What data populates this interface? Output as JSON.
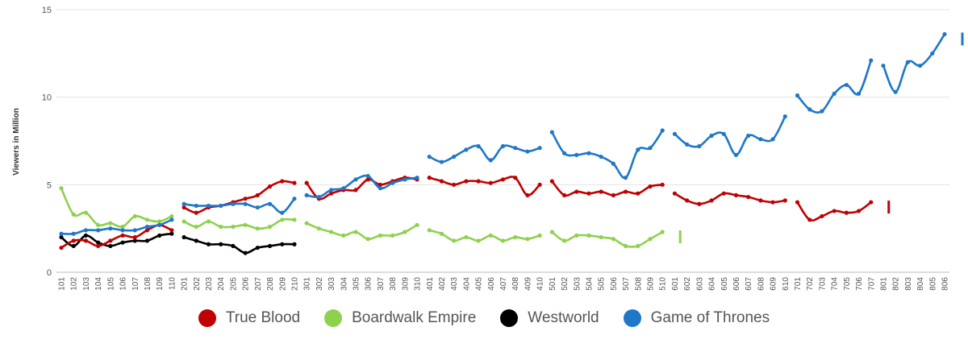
{
  "chart_data": {
    "type": "line",
    "title": "",
    "xlabel": "",
    "ylabel": "Viewers in Million",
    "ylim": [
      0,
      15
    ],
    "yticks": [
      0,
      5,
      10,
      15
    ],
    "grid": true,
    "legend_position": "bottom",
    "seasons": [
      [
        "101",
        "102",
        "103",
        "104",
        "105",
        "106",
        "107",
        "108",
        "109",
        "110"
      ],
      [
        "201",
        "202",
        "203",
        "204",
        "205",
        "206",
        "207",
        "208",
        "209",
        "210"
      ],
      [
        "301",
        "302",
        "303",
        "304",
        "305",
        "306",
        "307",
        "308",
        "309",
        "310"
      ],
      [
        "401",
        "402",
        "403",
        "404",
        "405",
        "406",
        "407",
        "408",
        "409",
        "410"
      ],
      [
        "501",
        "502",
        "503",
        "504",
        "505",
        "506",
        "507",
        "508",
        "509",
        "510"
      ],
      [
        "601",
        "602",
        "603",
        "604",
        "605",
        "606",
        "607",
        "608",
        "609",
        "610"
      ],
      [
        "701",
        "702",
        "703",
        "704",
        "705",
        "706",
        "707"
      ],
      [
        "801",
        "802",
        "803",
        "804",
        "805",
        "806"
      ]
    ],
    "series": [
      {
        "name": "True Blood",
        "color": "#c00000",
        "values": [
          [
            1.4,
            1.8,
            1.8,
            1.5,
            1.8,
            2.1,
            2.0,
            2.4,
            2.7,
            2.4
          ],
          [
            3.7,
            3.4,
            3.7,
            3.8,
            4.0,
            4.2,
            4.4,
            4.9,
            5.2,
            5.1
          ],
          [
            5.1,
            4.2,
            4.5,
            4.7,
            4.7,
            5.3,
            5.0,
            5.2,
            5.4,
            5.3
          ],
          [
            5.4,
            5.2,
            5.0,
            5.2,
            5.2,
            5.1,
            5.3,
            5.4,
            4.4,
            5.0
          ],
          [
            5.2,
            4.4,
            4.6,
            4.5,
            4.6,
            4.4,
            4.6,
            4.5,
            4.9,
            5.0
          ],
          [
            4.5,
            4.1,
            3.9,
            4.1,
            4.5,
            4.4,
            4.3,
            4.1,
            4.0,
            4.1
          ],
          [
            4.0,
            3.0,
            3.2,
            3.5,
            3.4,
            3.5,
            4.0
          ],
          []
        ]
      },
      {
        "name": "Boardwalk Empire",
        "color": "#8fd14f",
        "values": [
          [
            4.8,
            3.3,
            3.4,
            2.7,
            2.8,
            2.6,
            3.2,
            3.0,
            2.9,
            3.2
          ],
          [
            2.9,
            2.6,
            2.9,
            2.6,
            2.6,
            2.7,
            2.5,
            2.6,
            3.0,
            3.0
          ],
          [
            2.8,
            2.5,
            2.3,
            2.1,
            2.3,
            1.9,
            2.1,
            2.1,
            2.3,
            2.7
          ],
          [
            2.4,
            2.2,
            1.8,
            2.0,
            1.8,
            2.1,
            1.8,
            2.0,
            1.9,
            2.1
          ],
          [
            2.3,
            1.8,
            2.1,
            2.1,
            2.0,
            1.9,
            1.5,
            1.5,
            1.9,
            2.3
          ],
          [],
          [],
          []
        ]
      },
      {
        "name": "Westworld",
        "color": "#000000",
        "values": [
          [
            2.0,
            1.5,
            2.1,
            1.7,
            1.5,
            1.7,
            1.8,
            1.8,
            2.1,
            2.2
          ],
          [
            2.0,
            1.8,
            1.6,
            1.6,
            1.5,
            1.1,
            1.4,
            1.5,
            1.6,
            1.6
          ],
          [],
          [],
          [],
          [],
          [],
          []
        ]
      },
      {
        "name": "Game of Thrones",
        "color": "#1f77c8",
        "values": [
          [
            2.2,
            2.2,
            2.4,
            2.4,
            2.5,
            2.4,
            2.4,
            2.6,
            2.7,
            3.0
          ],
          [
            3.9,
            3.8,
            3.8,
            3.8,
            3.9,
            3.9,
            3.7,
            3.9,
            3.4,
            4.2
          ],
          [
            4.4,
            4.3,
            4.7,
            4.8,
            5.3,
            5.5,
            4.8,
            5.1,
            5.3,
            5.4
          ],
          [
            6.6,
            6.3,
            6.6,
            7.0,
            7.2,
            6.4,
            7.2,
            7.1,
            6.9,
            7.1
          ],
          [
            8.0,
            6.8,
            6.7,
            6.8,
            6.6,
            6.2,
            5.4,
            7.0,
            7.1,
            8.1
          ],
          [
            7.9,
            7.3,
            7.2,
            7.8,
            7.9,
            6.7,
            7.8,
            7.6,
            7.6,
            8.9
          ],
          [
            10.1,
            9.3,
            9.2,
            10.2,
            10.7,
            10.2,
            12.1
          ],
          [
            11.8,
            10.3,
            12.0,
            11.8,
            12.5,
            13.6
          ]
        ]
      }
    ]
  }
}
